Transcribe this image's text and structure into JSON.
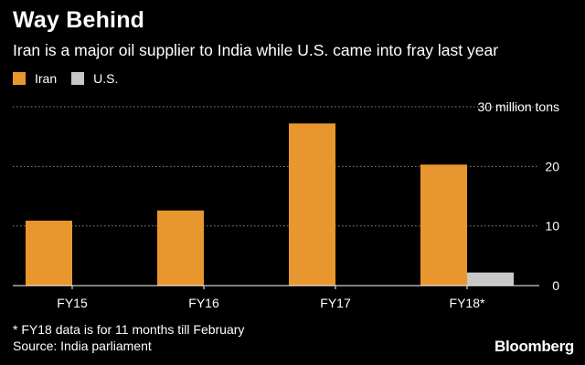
{
  "header": {
    "title": "Way Behind",
    "subtitle": "Iran is a major oil supplier to India while U.S. came into fray last year"
  },
  "footer": {
    "note": "* FY18 data is for 11 months till February",
    "source": "Source: India parliament",
    "brand": "Bloomberg"
  },
  "colors": {
    "iran": "#E8962E",
    "us": "#C8C8C8",
    "grid": "#8a8a8a",
    "background": "#000000",
    "text": "#ffffff"
  },
  "chart_data": {
    "type": "bar",
    "title": "Way Behind",
    "subtitle": "Iran is a major oil supplier to India while U.S. came into fray last year",
    "categories": [
      "FY15",
      "FY16",
      "FY17",
      "FY18*"
    ],
    "series": [
      {
        "name": "Iran",
        "values": [
          10.9,
          12.6,
          27.2,
          20.3
        ]
      },
      {
        "name": "U.S.",
        "values": [
          0,
          0,
          0,
          2.2
        ]
      }
    ],
    "y_ticks": [
      {
        "value": 0,
        "label": "0"
      },
      {
        "value": 10,
        "label": "10"
      },
      {
        "value": 20,
        "label": "20"
      },
      {
        "value": 30,
        "label": "30 million tons"
      }
    ],
    "ylim": [
      0,
      30
    ],
    "grid": true,
    "legend_position": "top-left",
    "y_axis_position": "right"
  }
}
